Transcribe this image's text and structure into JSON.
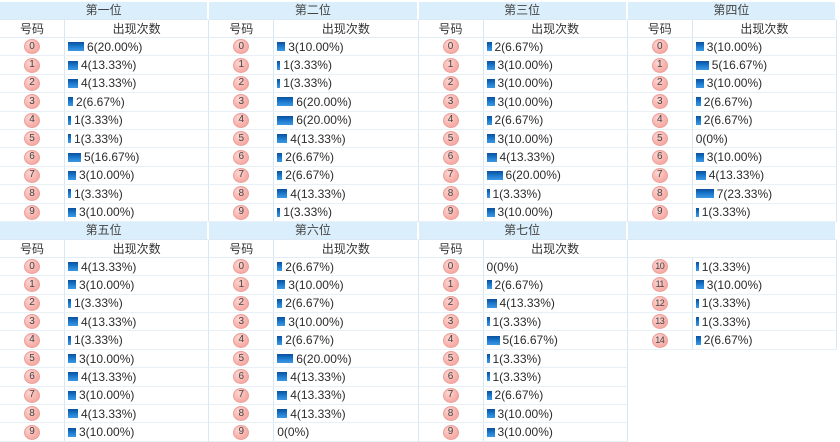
{
  "chart_data": [
    {
      "type": "bar",
      "title": "第一位",
      "xlabel": "号码",
      "ylabel": "出现次数",
      "categories": [
        0,
        1,
        2,
        3,
        4,
        5,
        6,
        7,
        8,
        9
      ],
      "values": [
        6,
        4,
        4,
        2,
        1,
        1,
        5,
        3,
        1,
        3
      ],
      "labels": [
        "6(20.00%)",
        "4(13.33%)",
        "4(13.33%)",
        "2(6.67%)",
        "1(3.33%)",
        "1(3.33%)",
        "5(16.67%)",
        "3(10.00%)",
        "1(3.33%)",
        "3(10.00%)"
      ]
    },
    {
      "type": "bar",
      "title": "第二位",
      "xlabel": "号码",
      "ylabel": "出现次数",
      "categories": [
        0,
        1,
        2,
        3,
        4,
        5,
        6,
        7,
        8,
        9
      ],
      "values": [
        3,
        1,
        1,
        6,
        6,
        4,
        2,
        2,
        4,
        1
      ],
      "labels": [
        "3(10.00%)",
        "1(3.33%)",
        "1(3.33%)",
        "6(20.00%)",
        "6(20.00%)",
        "4(13.33%)",
        "2(6.67%)",
        "2(6.67%)",
        "4(13.33%)",
        "1(3.33%)"
      ]
    },
    {
      "type": "bar",
      "title": "第三位",
      "xlabel": "号码",
      "ylabel": "出现次数",
      "categories": [
        0,
        1,
        2,
        3,
        4,
        5,
        6,
        7,
        8,
        9
      ],
      "values": [
        2,
        3,
        3,
        3,
        2,
        3,
        4,
        6,
        1,
        3
      ],
      "labels": [
        "2(6.67%)",
        "3(10.00%)",
        "3(10.00%)",
        "3(10.00%)",
        "2(6.67%)",
        "3(10.00%)",
        "4(13.33%)",
        "6(20.00%)",
        "1(3.33%)",
        "3(10.00%)"
      ]
    },
    {
      "type": "bar",
      "title": "第四位",
      "xlabel": "号码",
      "ylabel": "出现次数",
      "categories": [
        0,
        1,
        2,
        3,
        4,
        5,
        6,
        7,
        8,
        9
      ],
      "values": [
        3,
        5,
        3,
        2,
        2,
        0,
        3,
        4,
        7,
        1
      ],
      "labels": [
        "3(10.00%)",
        "5(16.67%)",
        "3(10.00%)",
        "2(6.67%)",
        "2(6.67%)",
        "0(0%)",
        "3(10.00%)",
        "4(13.33%)",
        "7(23.33%)",
        "1(3.33%)"
      ]
    },
    {
      "type": "bar",
      "title": "第五位",
      "xlabel": "号码",
      "ylabel": "出现次数",
      "categories": [
        0,
        1,
        2,
        3,
        4,
        5,
        6,
        7,
        8,
        9
      ],
      "values": [
        4,
        3,
        1,
        4,
        1,
        3,
        4,
        3,
        4,
        3
      ],
      "labels": [
        "4(13.33%)",
        "3(10.00%)",
        "1(3.33%)",
        "4(13.33%)",
        "1(3.33%)",
        "3(10.00%)",
        "4(13.33%)",
        "3(10.00%)",
        "4(13.33%)",
        "3(10.00%)"
      ]
    },
    {
      "type": "bar",
      "title": "第六位",
      "xlabel": "号码",
      "ylabel": "出现次数",
      "categories": [
        0,
        1,
        2,
        3,
        4,
        5,
        6,
        7,
        8,
        9
      ],
      "values": [
        2,
        3,
        2,
        3,
        2,
        6,
        4,
        4,
        4,
        0
      ],
      "labels": [
        "2(6.67%)",
        "3(10.00%)",
        "2(6.67%)",
        "3(10.00%)",
        "2(6.67%)",
        "6(20.00%)",
        "4(13.33%)",
        "4(13.33%)",
        "4(13.33%)",
        "0(0%)"
      ]
    },
    {
      "type": "bar",
      "title": "第七位",
      "xlabel": "号码",
      "ylabel": "出现次数",
      "categories": [
        0,
        1,
        2,
        3,
        4,
        5,
        6,
        7,
        8,
        9
      ],
      "values": [
        0,
        2,
        4,
        1,
        5,
        1,
        1,
        2,
        3,
        3
      ],
      "labels": [
        "0(0%)",
        "2(6.67%)",
        "4(13.33%)",
        "1(3.33%)",
        "5(16.67%)",
        "1(3.33%)",
        "1(3.33%)",
        "2(6.67%)",
        "3(10.00%)",
        "3(10.00%)"
      ]
    },
    {
      "type": "bar",
      "title": "",
      "xlabel": "",
      "ylabel": "",
      "categories": [
        10,
        11,
        12,
        13,
        14
      ],
      "values": [
        1,
        3,
        1,
        1,
        2
      ],
      "labels": [
        "1(3.33%)",
        "3(10.00%)",
        "1(3.33%)",
        "1(3.33%)",
        "2(6.67%)"
      ]
    }
  ],
  "colors": {
    "band_bg": "#daeefb",
    "row_border": "#e7eff7",
    "col_border": "#d9e7f3",
    "bar_top": "#0b509c",
    "bar_bottom": "#3d97e2",
    "ball_fill": "#f8b0aa",
    "ball_border": "#ec9f98",
    "text": "#2b2b2b"
  }
}
